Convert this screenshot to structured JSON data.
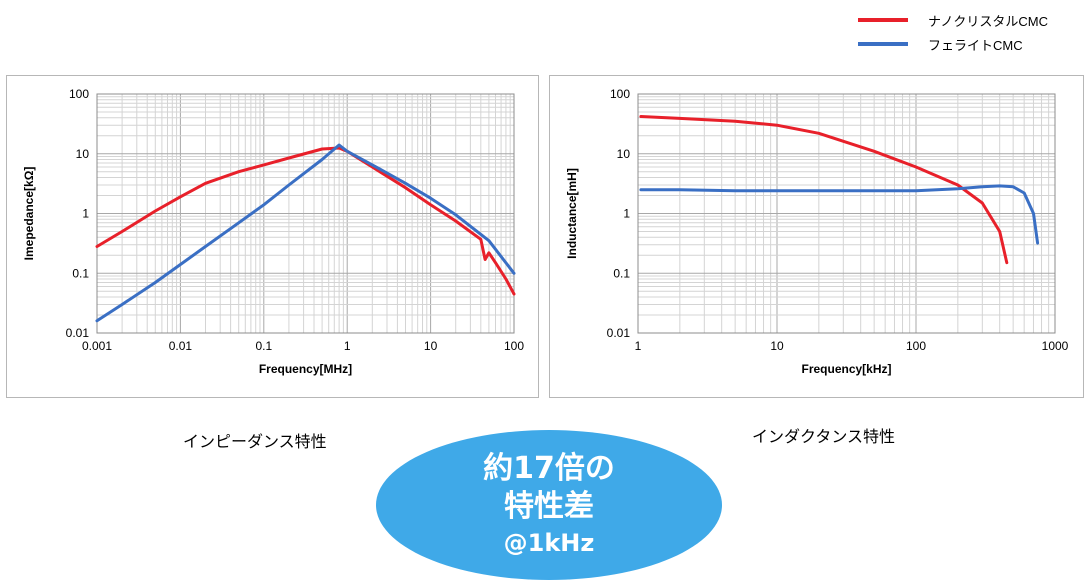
{
  "legend": [
    {
      "name": "ナノクリスタルCMC",
      "color": "#e8202a"
    },
    {
      "name": "フェライトCMC",
      "color": "#3a6fc4"
    }
  ],
  "captions": {
    "impedance": "インピーダンス特性",
    "inductance": "インダクタンス特性"
  },
  "bubble": {
    "line1": "約17倍の",
    "line2": "特性差",
    "line3": "@1kHz",
    "color": "#3fa9e8"
  },
  "chart_data": [
    {
      "type": "line",
      "xlabel": "Frequency[MHz]",
      "ylabel": "Imepedance[kΩ]",
      "xscale": "log",
      "yscale": "log",
      "xlim": [
        0.001,
        100
      ],
      "ylim": [
        0.01,
        100
      ],
      "xticks": [
        "0.001",
        "0.01",
        "0.1",
        "1",
        "10",
        "100"
      ],
      "yticks": [
        "0.01",
        "0.1",
        "1",
        "10",
        "100"
      ],
      "grid": true,
      "series": [
        {
          "name": "ナノクリスタルCMC",
          "color": "#e8202a",
          "x": [
            0.001,
            0.002,
            0.005,
            0.01,
            0.02,
            0.05,
            0.1,
            0.2,
            0.5,
            0.8,
            1,
            2,
            5,
            10,
            20,
            40,
            45,
            50,
            60,
            80,
            100
          ],
          "y": [
            0.28,
            0.5,
            1.1,
            1.9,
            3.2,
            5.0,
            6.5,
            8.5,
            12,
            12.5,
            11,
            6,
            2.7,
            1.4,
            0.75,
            0.37,
            0.17,
            0.22,
            0.15,
            0.08,
            0.045
          ]
        },
        {
          "name": "フェライトCMC",
          "color": "#3a6fc4",
          "x": [
            0.001,
            0.002,
            0.005,
            0.01,
            0.02,
            0.05,
            0.1,
            0.2,
            0.5,
            0.8,
            1,
            2,
            5,
            10,
            20,
            50,
            100
          ],
          "y": [
            0.016,
            0.03,
            0.07,
            0.14,
            0.28,
            0.7,
            1.4,
            3,
            8,
            14,
            11,
            6.5,
            3.2,
            1.8,
            0.95,
            0.35,
            0.1
          ]
        }
      ]
    },
    {
      "type": "line",
      "xlabel": "Frequency[kHz]",
      "ylabel": "Inductance[mH]",
      "xscale": "log",
      "yscale": "log",
      "xlim": [
        1,
        1000
      ],
      "ylim": [
        0.01,
        100
      ],
      "xticks": [
        "1",
        "10",
        "100",
        "1000"
      ],
      "yticks": [
        "0.01",
        "0.1",
        "1",
        "10",
        "100"
      ],
      "grid": true,
      "series": [
        {
          "name": "ナノクリスタルCMC",
          "color": "#e8202a",
          "x": [
            1.05,
            2,
            5,
            10,
            20,
            50,
            100,
            200,
            300,
            400,
            450
          ],
          "y": [
            42,
            39,
            35,
            30,
            22,
            11,
            6,
            3,
            1.5,
            0.5,
            0.15
          ]
        },
        {
          "name": "フェライトCMC",
          "color": "#3a6fc4",
          "x": [
            1.05,
            2,
            5,
            10,
            20,
            50,
            100,
            200,
            300,
            400,
            500,
            600,
            700,
            750
          ],
          "y": [
            2.5,
            2.5,
            2.4,
            2.4,
            2.4,
            2.4,
            2.4,
            2.6,
            2.8,
            2.9,
            2.8,
            2.2,
            1.0,
            0.32
          ]
        }
      ]
    }
  ]
}
